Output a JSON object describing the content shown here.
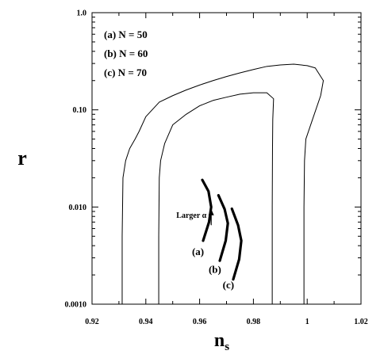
{
  "chart_data": {
    "type": "line",
    "title": "",
    "xlabel": "n",
    "xlabel_subscript": "s",
    "ylabel": "r",
    "xlim": [
      0.92,
      1.02
    ],
    "ylim": [
      0.001,
      1.0
    ],
    "yscale": "log",
    "grid": false,
    "x_ticks": [
      "0.92",
      "0.94",
      "0.96",
      "0.98",
      "1",
      "1.02"
    ],
    "y_ticks": [
      "0.0010",
      "0.010",
      "0.10",
      "1.0"
    ],
    "legend_text": [
      "(a) N = 50",
      "(b) N = 60",
      "(c) N = 70"
    ],
    "legend_placement": "top-left",
    "series": [
      {
        "kind": "outer-contour",
        "points": [
          [
            0.9312,
            0.001
          ],
          [
            0.9312,
            0.005
          ],
          [
            0.9315,
            0.02
          ],
          [
            0.9325,
            0.03
          ],
          [
            0.934,
            0.04
          ],
          [
            0.936,
            0.05
          ],
          [
            0.9375,
            0.06
          ],
          [
            0.94,
            0.085
          ],
          [
            0.945,
            0.12
          ],
          [
            0.95,
            0.14
          ],
          [
            0.955,
            0.16
          ],
          [
            0.96,
            0.18
          ],
          [
            0.965,
            0.2
          ],
          [
            0.97,
            0.22
          ],
          [
            0.975,
            0.24
          ],
          [
            0.98,
            0.26
          ],
          [
            0.985,
            0.28
          ],
          [
            0.99,
            0.29
          ],
          [
            0.995,
            0.295
          ],
          [
            1.0,
            0.285
          ],
          [
            1.003,
            0.27
          ],
          [
            1.006,
            0.2
          ],
          [
            1.005,
            0.14
          ],
          [
            1.002,
            0.08
          ],
          [
            0.9995,
            0.05
          ],
          [
            0.999,
            0.03
          ],
          [
            0.9988,
            0.01
          ],
          [
            0.9988,
            0.001
          ]
        ]
      },
      {
        "kind": "inner-contour",
        "points": [
          [
            0.9448,
            0.001
          ],
          [
            0.9448,
            0.005
          ],
          [
            0.945,
            0.02
          ],
          [
            0.9455,
            0.03
          ],
          [
            0.947,
            0.045
          ],
          [
            0.95,
            0.07
          ],
          [
            0.955,
            0.09
          ],
          [
            0.96,
            0.11
          ],
          [
            0.965,
            0.125
          ],
          [
            0.97,
            0.135
          ],
          [
            0.975,
            0.145
          ],
          [
            0.98,
            0.15
          ],
          [
            0.985,
            0.15
          ],
          [
            0.9875,
            0.13
          ],
          [
            0.9872,
            0.08
          ],
          [
            0.9871,
            0.04
          ],
          [
            0.987,
            0.01
          ],
          [
            0.987,
            0.001
          ]
        ]
      },
      {
        "name": "(a)",
        "kind": "alpha-arc",
        "points": [
          [
            0.9613,
            0.0045
          ],
          [
            0.9635,
            0.007
          ],
          [
            0.9643,
            0.01
          ],
          [
            0.9633,
            0.0145
          ],
          [
            0.961,
            0.019
          ]
        ]
      },
      {
        "name": "(b)",
        "kind": "alpha-arc",
        "points": [
          [
            0.9675,
            0.0028
          ],
          [
            0.9697,
            0.0045
          ],
          [
            0.9705,
            0.0068
          ],
          [
            0.9693,
            0.0095
          ],
          [
            0.967,
            0.0132
          ]
        ]
      },
      {
        "name": "(c)",
        "kind": "alpha-arc",
        "points": [
          [
            0.9725,
            0.0018
          ],
          [
            0.9747,
            0.0029
          ],
          [
            0.9755,
            0.0045
          ],
          [
            0.9743,
            0.0065
          ],
          [
            0.972,
            0.0096
          ]
        ]
      }
    ],
    "annotations": {
      "arrow_label": "Larger α",
      "arrow_from": [
        0.9643,
        0.0065
      ],
      "arrow_to": [
        0.9643,
        0.0092
      ],
      "curve_labels": [
        {
          "text": "(a)",
          "x": 0.9594,
          "y": 0.0032
        },
        {
          "text": "(b)",
          "x": 0.9657,
          "y": 0.0021
        },
        {
          "text": "(c)",
          "x": 0.9707,
          "y": 0.00145
        }
      ]
    }
  }
}
